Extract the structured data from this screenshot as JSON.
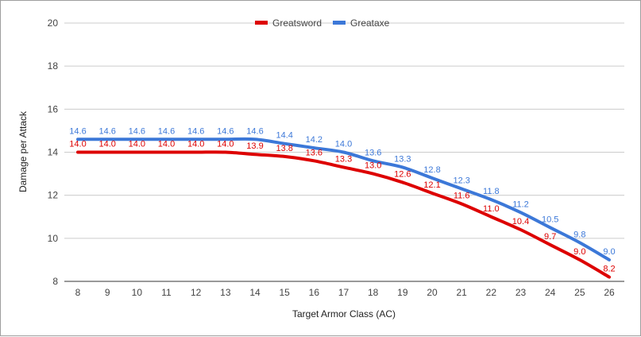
{
  "chart_data": {
    "type": "line",
    "title": "",
    "xlabel": "Target Armor Class (AC)",
    "ylabel": "Damage per Attack",
    "x": [
      8,
      9,
      10,
      11,
      12,
      13,
      14,
      15,
      16,
      17,
      18,
      19,
      20,
      21,
      22,
      23,
      24,
      25,
      26
    ],
    "xlim": [
      8,
      26
    ],
    "ylim": [
      8,
      20
    ],
    "yticks": [
      8,
      10,
      12,
      14,
      16,
      18,
      20
    ],
    "grid": true,
    "legend_position": "top-center",
    "series": [
      {
        "name": "Greatsword",
        "color": "#dd0000",
        "values": [
          14.0,
          14.0,
          14.0,
          14.0,
          14.0,
          14.0,
          13.9,
          13.8,
          13.6,
          13.3,
          13.0,
          12.6,
          12.1,
          11.6,
          11.0,
          10.4,
          9.7,
          9.0,
          8.2
        ],
        "labels": [
          "14.0",
          "14.0",
          "14.0",
          "14.0",
          "14.0",
          "14.0",
          "13.9",
          "13.8",
          "13.6",
          "13.3",
          "13.0",
          "12.6",
          "12.1",
          "11.6",
          "11.0",
          "10.4",
          "9.7",
          "9.0",
          "8.2"
        ]
      },
      {
        "name": "Greataxe",
        "color": "#3c78d8",
        "values": [
          14.6,
          14.6,
          14.6,
          14.6,
          14.6,
          14.6,
          14.6,
          14.4,
          14.2,
          14.0,
          13.6,
          13.3,
          12.8,
          12.3,
          11.8,
          11.2,
          10.5,
          9.8,
          9.0
        ],
        "labels": [
          "14.6",
          "14.6",
          "14.6",
          "14.6",
          "14.6",
          "14.6",
          "14.6",
          "14.4",
          "14.2",
          "14.0",
          "13.6",
          "13.3",
          "12.8",
          "12.3",
          "11.8",
          "11.2",
          "10.5",
          "9.8",
          "9.0"
        ]
      }
    ]
  }
}
